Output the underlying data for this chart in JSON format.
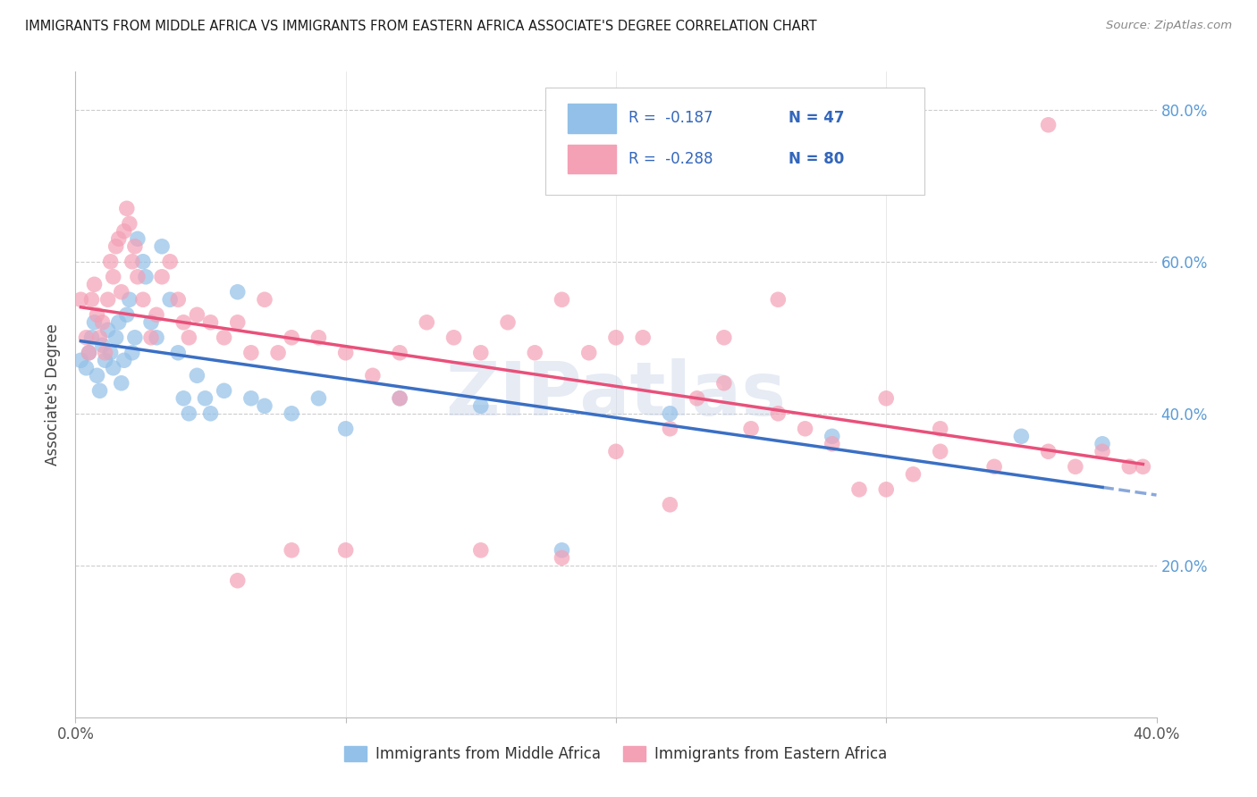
{
  "title": "IMMIGRANTS FROM MIDDLE AFRICA VS IMMIGRANTS FROM EASTERN AFRICA ASSOCIATE'S DEGREE CORRELATION CHART",
  "source": "Source: ZipAtlas.com",
  "ylabel": "Associate's Degree",
  "xlim": [
    0.0,
    0.4
  ],
  "ylim": [
    0.0,
    0.85
  ],
  "xtick_vals": [
    0.0,
    0.1,
    0.2,
    0.3,
    0.4
  ],
  "xtick_labels_show": [
    "0.0%",
    "",
    "",
    "",
    "40.0%"
  ],
  "ytick_vals": [
    0.2,
    0.4,
    0.6,
    0.8
  ],
  "ytick_labels_right": [
    "20.0%",
    "40.0%",
    "60.0%",
    "80.0%"
  ],
  "watermark": "ZIPatlas",
  "legend_r1": "-0.187",
  "legend_n1": "47",
  "legend_r2": "-0.288",
  "legend_n2": "80",
  "color_blue": "#92C0E8",
  "color_pink": "#F4A0B5",
  "line_color_blue": "#3A6FC4",
  "line_color_pink": "#E8507A",
  "title_color": "#1a1a1a",
  "source_color": "#888888",
  "axis_label_color": "#444444",
  "tick_color_right": "#5B9BD5",
  "blue_scatter_x": [
    0.002,
    0.004,
    0.005,
    0.006,
    0.007,
    0.008,
    0.009,
    0.01,
    0.011,
    0.012,
    0.013,
    0.014,
    0.015,
    0.016,
    0.017,
    0.018,
    0.019,
    0.02,
    0.021,
    0.022,
    0.023,
    0.025,
    0.026,
    0.028,
    0.03,
    0.032,
    0.035,
    0.038,
    0.04,
    0.042,
    0.045,
    0.048,
    0.05,
    0.055,
    0.06,
    0.065,
    0.07,
    0.08,
    0.09,
    0.1,
    0.12,
    0.15,
    0.18,
    0.22,
    0.28,
    0.35,
    0.38
  ],
  "blue_scatter_y": [
    0.47,
    0.46,
    0.48,
    0.5,
    0.52,
    0.45,
    0.43,
    0.49,
    0.47,
    0.51,
    0.48,
    0.46,
    0.5,
    0.52,
    0.44,
    0.47,
    0.53,
    0.55,
    0.48,
    0.5,
    0.63,
    0.6,
    0.58,
    0.52,
    0.5,
    0.62,
    0.55,
    0.48,
    0.42,
    0.4,
    0.45,
    0.42,
    0.4,
    0.43,
    0.56,
    0.42,
    0.41,
    0.4,
    0.42,
    0.38,
    0.42,
    0.41,
    0.22,
    0.4,
    0.37,
    0.37,
    0.36
  ],
  "pink_scatter_x": [
    0.002,
    0.004,
    0.005,
    0.006,
    0.007,
    0.008,
    0.009,
    0.01,
    0.011,
    0.012,
    0.013,
    0.014,
    0.015,
    0.016,
    0.017,
    0.018,
    0.019,
    0.02,
    0.021,
    0.022,
    0.023,
    0.025,
    0.028,
    0.03,
    0.032,
    0.035,
    0.038,
    0.04,
    0.042,
    0.045,
    0.05,
    0.055,
    0.06,
    0.065,
    0.07,
    0.075,
    0.08,
    0.09,
    0.1,
    0.11,
    0.12,
    0.13,
    0.14,
    0.15,
    0.16,
    0.17,
    0.18,
    0.19,
    0.2,
    0.21,
    0.22,
    0.23,
    0.24,
    0.25,
    0.26,
    0.27,
    0.28,
    0.29,
    0.3,
    0.31,
    0.32,
    0.34,
    0.36,
    0.37,
    0.38,
    0.39,
    0.395,
    0.22,
    0.26,
    0.3,
    0.1,
    0.18,
    0.15,
    0.08,
    0.06,
    0.2,
    0.12,
    0.24,
    0.32,
    0.36
  ],
  "pink_scatter_y": [
    0.55,
    0.5,
    0.48,
    0.55,
    0.57,
    0.53,
    0.5,
    0.52,
    0.48,
    0.55,
    0.6,
    0.58,
    0.62,
    0.63,
    0.56,
    0.64,
    0.67,
    0.65,
    0.6,
    0.62,
    0.58,
    0.55,
    0.5,
    0.53,
    0.58,
    0.6,
    0.55,
    0.52,
    0.5,
    0.53,
    0.52,
    0.5,
    0.52,
    0.48,
    0.55,
    0.48,
    0.5,
    0.5,
    0.48,
    0.45,
    0.48,
    0.52,
    0.5,
    0.48,
    0.52,
    0.48,
    0.55,
    0.48,
    0.5,
    0.5,
    0.38,
    0.42,
    0.44,
    0.38,
    0.4,
    0.38,
    0.36,
    0.3,
    0.42,
    0.32,
    0.35,
    0.33,
    0.35,
    0.33,
    0.35,
    0.33,
    0.33,
    0.28,
    0.55,
    0.3,
    0.22,
    0.21,
    0.22,
    0.22,
    0.18,
    0.35,
    0.42,
    0.5,
    0.38,
    0.78
  ]
}
